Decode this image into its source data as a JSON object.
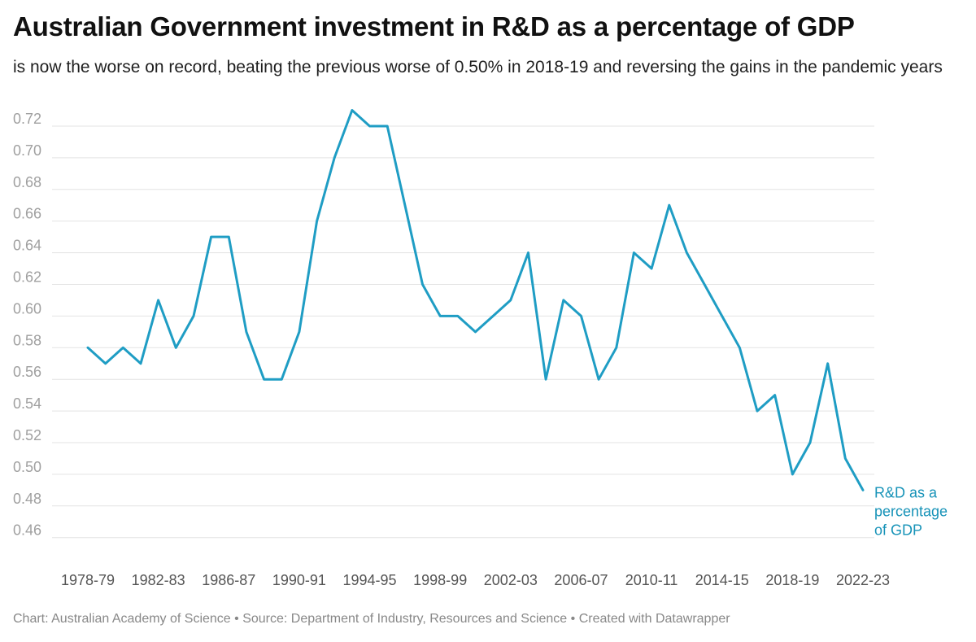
{
  "title": "Australian Government investment in R&D as a percentage of GDP",
  "subtitle": "is now the worse on record, beating the previous worse of 0.50% in 2018-19 and reversing the gains in the pandemic years",
  "footer": "Chart: Australian Academy of Science • Source: Department of Industry, Resources and Science • Created with Datawrapper",
  "colors": {
    "line": "#1f9dc4",
    "label": "#1793b8",
    "grid": "#e3e3e3"
  },
  "chart_data": {
    "type": "line",
    "title": "Australian Government investment in R&D as a percentage of GDP",
    "subtitle": "is now the worse on record, beating the previous worse of 0.50% in 2018-19 and reversing the gains in the pandemic years",
    "xlabel": "",
    "ylabel": "",
    "ylim": [
      0.455,
      0.73
    ],
    "yticks": [
      "0.46",
      "0.48",
      "0.50",
      "0.52",
      "0.54",
      "0.56",
      "0.58",
      "0.60",
      "0.62",
      "0.64",
      "0.66",
      "0.68",
      "0.70",
      "0.72"
    ],
    "xticks": [
      "1978-79",
      "1982-83",
      "1986-87",
      "1990-91",
      "1994-95",
      "1998-99",
      "2002-03",
      "2006-07",
      "2010-11",
      "2014-15",
      "2018-19",
      "2022-23"
    ],
    "grid": true,
    "x": [
      "1978-79",
      "1979-80",
      "1980-81",
      "1981-82",
      "1982-83",
      "1983-84",
      "1984-85",
      "1985-86",
      "1986-87",
      "1987-88",
      "1988-89",
      "1989-90",
      "1990-91",
      "1991-92",
      "1992-93",
      "1993-94",
      "1994-95",
      "1995-96",
      "1996-97",
      "1997-98",
      "1998-99",
      "1999-00",
      "2000-01",
      "2001-02",
      "2002-03",
      "2003-04",
      "2004-05",
      "2005-06",
      "2006-07",
      "2007-08",
      "2008-09",
      "2009-10",
      "2010-11",
      "2011-12",
      "2012-13",
      "2013-14",
      "2014-15",
      "2015-16",
      "2016-17",
      "2017-18",
      "2018-19",
      "2019-20",
      "2020-21",
      "2021-22",
      "2022-23"
    ],
    "series": [
      {
        "name": "R&D as a percentage of GDP",
        "values": [
          0.58,
          0.57,
          0.58,
          0.57,
          0.61,
          0.58,
          0.6,
          0.65,
          0.65,
          0.59,
          0.56,
          0.56,
          0.59,
          0.66,
          0.7,
          0.73,
          0.72,
          0.72,
          0.67,
          0.62,
          0.6,
          0.6,
          0.59,
          0.6,
          0.61,
          0.64,
          0.56,
          0.61,
          0.6,
          0.56,
          0.58,
          0.64,
          0.63,
          0.67,
          0.64,
          0.62,
          0.6,
          0.58,
          0.54,
          0.55,
          0.5,
          0.52,
          0.57,
          0.51,
          0.49
        ]
      }
    ],
    "series_label_lines": [
      "R&D as a",
      "percentage",
      "of GDP"
    ]
  }
}
